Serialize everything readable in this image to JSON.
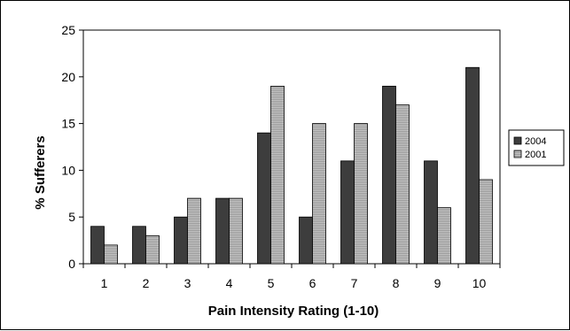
{
  "chart_data": {
    "type": "bar",
    "categories": [
      "1",
      "2",
      "3",
      "4",
      "5",
      "6",
      "7",
      "8",
      "9",
      "10"
    ],
    "series": [
      {
        "name": "2004",
        "values": [
          4,
          4,
          5,
          7,
          14,
          5,
          11,
          19,
          11,
          21
        ],
        "color": "#3d3d3d"
      },
      {
        "name": "2001",
        "values": [
          2,
          3,
          7,
          7,
          19,
          15,
          15,
          17,
          6,
          9
        ],
        "color": "#b4b4b4"
      }
    ],
    "title": "",
    "xlabel": "Pain Intensity Rating  (1-10)",
    "ylabel": "% Sufferers",
    "ylim": [
      0,
      25
    ],
    "yticks": [
      0,
      5,
      10,
      15,
      20,
      25
    ],
    "grid": false,
    "legend_position": "right"
  }
}
